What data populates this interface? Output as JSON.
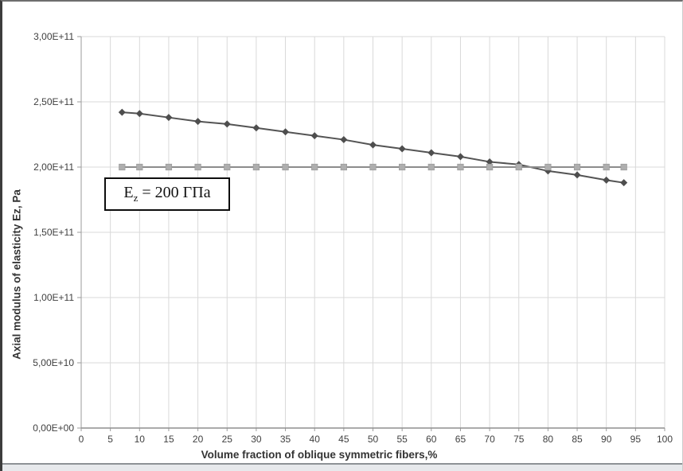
{
  "figure": {
    "annotation": {
      "prefix": "E",
      "subscript": "z",
      "suffix": " = 200 ГПа",
      "full_text": "Ez = 200 ГПа"
    }
  },
  "chart_data": {
    "type": "line",
    "title": "",
    "xlabel": "Volume fraction of oblique symmetric fibers,%",
    "ylabel": "Axial modulus of elasticity Ez, Pa",
    "xlim": [
      0,
      100
    ],
    "ylim": [
      0,
      300000000000.0
    ],
    "grid": true,
    "legend_position": "none",
    "x_ticks": [
      0,
      5,
      10,
      15,
      20,
      25,
      30,
      35,
      40,
      45,
      50,
      55,
      60,
      65,
      70,
      75,
      80,
      85,
      90,
      95,
      100
    ],
    "y_ticks": [
      {
        "value": 0,
        "label": "0,00E+00"
      },
      {
        "value": 50000000000.0,
        "label": "5,00E+10"
      },
      {
        "value": 100000000000.0,
        "label": "1,00E+11"
      },
      {
        "value": 150000000000.0,
        "label": "1,50E+11"
      },
      {
        "value": 200000000000.0,
        "label": "2,00E+11"
      },
      {
        "value": 250000000000.0,
        "label": "2,50E+11"
      },
      {
        "value": 300000000000.0,
        "label": "3,00E+11"
      }
    ],
    "x": [
      7,
      10,
      15,
      20,
      25,
      30,
      35,
      40,
      45,
      50,
      55,
      60,
      65,
      70,
      75,
      80,
      85,
      90,
      93
    ],
    "series": [
      {
        "id": "diamond-series",
        "marker": "diamond",
        "line_color": "#545454",
        "marker_color": "#4e4e4e",
        "values": [
          242000000000.0,
          241000000000.0,
          238000000000.0,
          235000000000.0,
          233000000000.0,
          230000000000.0,
          227000000000.0,
          224000000000.0,
          221000000000.0,
          217000000000.0,
          214000000000.0,
          211000000000.0,
          208000000000.0,
          204000000000.0,
          202000000000.0,
          197000000000.0,
          194000000000.0,
          190000000000.0,
          188000000000.0
        ]
      },
      {
        "id": "square-series",
        "marker": "square",
        "line_color": "#8c8c8c",
        "marker_color": "#aeaeae",
        "values": [
          200000000000.0,
          200000000000.0,
          200000000000.0,
          200000000000.0,
          200000000000.0,
          200000000000.0,
          200000000000.0,
          200000000000.0,
          200000000000.0,
          200000000000.0,
          200000000000.0,
          200000000000.0,
          200000000000.0,
          200000000000.0,
          200000000000.0,
          200000000000.0,
          200000000000.0,
          200000000000.0,
          200000000000.0
        ]
      }
    ],
    "colors": {
      "grid": "#d9d9d9",
      "axis": "#9b9b9b",
      "tick_text": "#404040"
    }
  }
}
